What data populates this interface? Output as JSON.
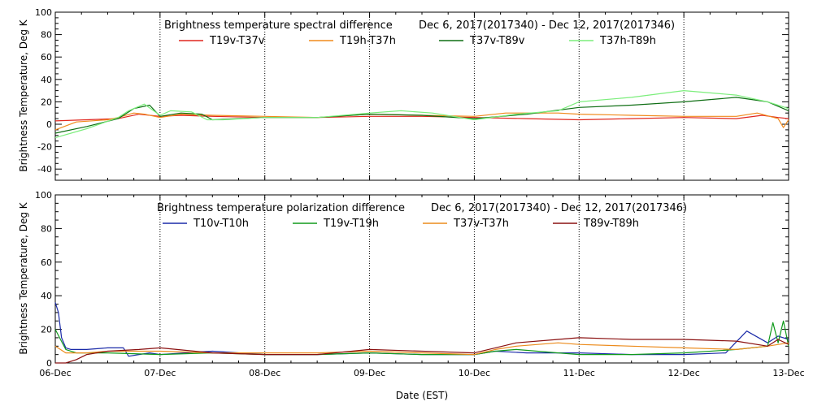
{
  "x_axis": {
    "label": "Date (EST)",
    "tick_labels": [
      "06-Dec",
      "07-Dec",
      "08-Dec",
      "09-Dec",
      "10-Dec",
      "11-Dec",
      "12-Dec",
      "13-Dec"
    ]
  },
  "chart_data": [
    {
      "type": "line",
      "title": "Brightness temperature spectral difference",
      "date_range": "Dec  6, 2017(2017340) - Dec 12, 2017(2017346)",
      "ylabel": "Brightness Temperature, Deg K",
      "xlabel": "",
      "ylim": [
        -50,
        100
      ],
      "yticks": [
        -40,
        -20,
        0,
        20,
        40,
        60,
        80,
        100
      ],
      "xlim": [
        0,
        7
      ],
      "x_unit": "days since 06-Dec",
      "grid": "vertical dotted at each day",
      "legend": "top, two rows of two",
      "series": [
        {
          "name": "T19v-T37v",
          "color": "#e0271f",
          "x": [
            0,
            0.3,
            0.6,
            0.7,
            0.8,
            1.0,
            1.2,
            1.5,
            2.0,
            2.5,
            3.0,
            3.5,
            4.0,
            4.5,
            5.0,
            5.5,
            6.0,
            6.5,
            6.75,
            6.9,
            7.0
          ],
          "y": [
            3,
            4,
            5,
            7,
            9,
            7,
            8,
            7,
            6,
            6,
            7,
            7,
            6,
            5,
            4,
            5,
            6,
            5,
            8,
            6,
            5
          ]
        },
        {
          "name": "T19h-T37h",
          "color": "#f08a1c",
          "x": [
            0,
            0.2,
            0.5,
            0.6,
            0.75,
            0.85,
            1.0,
            1.2,
            1.5,
            2.0,
            2.5,
            3.0,
            3.5,
            4.0,
            4.3,
            4.8,
            5.0,
            5.5,
            6.0,
            6.5,
            6.7,
            6.9,
            6.95,
            7.0
          ],
          "y": [
            -5,
            2,
            4,
            6,
            10,
            9,
            6,
            9,
            8,
            7,
            6,
            9,
            8,
            7,
            10,
            10,
            9,
            8,
            7,
            7,
            10,
            5,
            -3,
            4
          ]
        },
        {
          "name": "T37v-T89v",
          "color": "#0f6e14",
          "x": [
            0,
            0.3,
            0.6,
            0.75,
            0.9,
            1.0,
            1.2,
            1.4,
            1.5,
            2.0,
            2.5,
            3.0,
            3.5,
            4.0,
            4.5,
            5.0,
            5.5,
            6.0,
            6.5,
            6.8,
            7.0
          ],
          "y": [
            -8,
            -2,
            5,
            14,
            17,
            7,
            10,
            9,
            4,
            6,
            6,
            9,
            8,
            5,
            9,
            15,
            17,
            20,
            24,
            20,
            12
          ]
        },
        {
          "name": "T37h-T89h",
          "color": "#7cee7c",
          "x": [
            0,
            0.3,
            0.6,
            0.7,
            0.85,
            1.0,
            1.1,
            1.3,
            1.45,
            1.6,
            2.0,
            2.5,
            3.0,
            3.3,
            3.6,
            4.0,
            4.4,
            4.8,
            5.0,
            5.5,
            6.0,
            6.5,
            6.8,
            7.0
          ],
          "y": [
            -12,
            -4,
            6,
            12,
            18,
            8,
            12,
            11,
            4,
            4,
            6,
            6,
            10,
            12,
            10,
            4,
            9,
            12,
            20,
            24,
            30,
            26,
            20,
            14
          ]
        }
      ]
    },
    {
      "type": "line",
      "title": "Brightness temperature polarization difference",
      "date_range": "Dec  6, 2017(2017340) - Dec 12, 2017(2017346)",
      "ylabel": "Brightness Temperature, Deg K",
      "xlabel": "Date (EST)",
      "ylim": [
        0,
        100
      ],
      "yticks": [
        0,
        20,
        40,
        60,
        80,
        100
      ],
      "xlim": [
        0,
        7
      ],
      "x_unit": "days since 06-Dec",
      "grid": "vertical dotted at each day",
      "legend": "top, one row of four",
      "series": [
        {
          "name": "T10v-T10h",
          "color": "#1a2aa8",
          "x": [
            0,
            0.03,
            0.06,
            0.1,
            0.15,
            0.3,
            0.5,
            0.65,
            0.7,
            0.9,
            1.0,
            1.5,
            2.0,
            2.5,
            3.0,
            3.5,
            4.0,
            4.2,
            4.5,
            5.0,
            5.5,
            6.0,
            6.4,
            6.6,
            6.8,
            6.9,
            7.0
          ],
          "y": [
            36,
            30,
            15,
            9,
            8,
            8,
            9,
            9,
            4,
            6,
            5,
            7,
            5,
            5,
            6,
            5,
            5,
            7,
            6,
            6,
            5,
            5,
            6,
            19,
            12,
            16,
            14
          ]
        },
        {
          "name": "T19v-T19h",
          "color": "#119a1c",
          "x": [
            0,
            0.05,
            0.1,
            0.2,
            0.5,
            1.0,
            1.5,
            2.0,
            2.5,
            3.0,
            3.5,
            4.0,
            4.2,
            4.4,
            4.8,
            5.0,
            5.5,
            6.0,
            6.5,
            6.8,
            6.85,
            6.9,
            6.95,
            7.0
          ],
          "y": [
            20,
            14,
            8,
            6,
            6,
            5,
            6,
            5,
            5,
            6,
            5,
            5,
            7,
            8,
            6,
            5,
            5,
            6,
            8,
            10,
            24,
            12,
            25,
            10
          ]
        },
        {
          "name": "T37v-T37h",
          "color": "#ec8b1c",
          "x": [
            0,
            0.1,
            0.3,
            0.5,
            1.0,
            1.5,
            2.0,
            2.5,
            3.0,
            3.5,
            4.0,
            4.2,
            4.4,
            4.8,
            5.0,
            5.5,
            6.0,
            6.5,
            6.8,
            7.0
          ],
          "y": [
            10,
            6,
            6,
            7,
            7,
            6,
            6,
            6,
            7,
            6,
            5,
            8,
            10,
            12,
            11,
            10,
            9,
            8,
            10,
            12
          ]
        },
        {
          "name": "T89v-T89h",
          "color": "#8a1010",
          "x": [
            0,
            0.1,
            0.2,
            0.3,
            0.5,
            0.8,
            1.0,
            1.5,
            2.0,
            2.5,
            3.0,
            3.5,
            4.0,
            4.2,
            4.4,
            4.8,
            5.0,
            5.5,
            6.0,
            6.5,
            6.8,
            6.9,
            7.0
          ],
          "y": [
            0,
            0,
            2,
            5,
            7,
            8,
            9,
            6,
            5,
            5,
            8,
            7,
            6,
            9,
            12,
            14,
            15,
            14,
            14,
            13,
            10,
            14,
            11
          ]
        }
      ]
    }
  ]
}
